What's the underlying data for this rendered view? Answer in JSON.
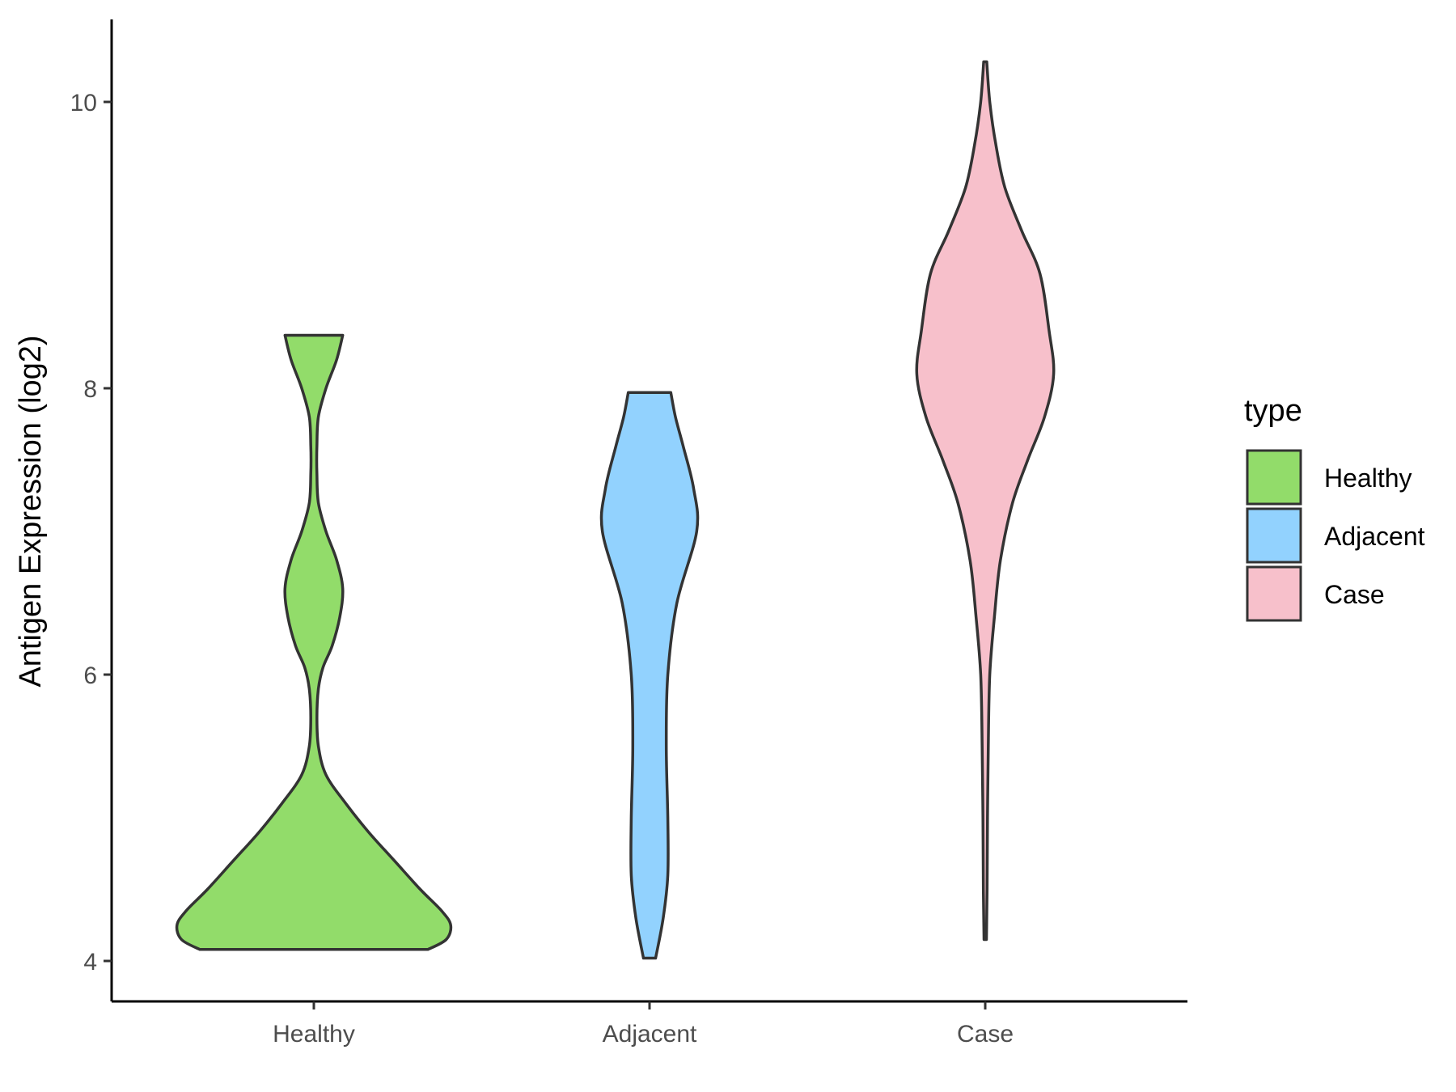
{
  "chart_data": {
    "type": "violin",
    "title": "",
    "xlabel": "",
    "ylabel": "Antigen Expression (log2)",
    "ylim": [
      3.7,
      10.6
    ],
    "yticks": [
      4,
      6,
      8,
      10
    ],
    "yticks_labels": [
      "4",
      "6",
      "8",
      "10"
    ],
    "categories": [
      "Healthy",
      "Adjacent",
      "Case"
    ],
    "grid": false,
    "legend": {
      "title": "type",
      "position": "right",
      "entries": [
        "Healthy",
        "Adjacent",
        "Case"
      ]
    },
    "series": [
      {
        "category": "Healthy",
        "color": "#92dc6a",
        "ymin": 4.08,
        "ymax": 8.37,
        "density": [
          [
            4.08,
            0.75
          ],
          [
            4.15,
            0.87
          ],
          [
            4.25,
            0.9
          ],
          [
            4.35,
            0.84
          ],
          [
            4.5,
            0.7
          ],
          [
            4.7,
            0.53
          ],
          [
            4.9,
            0.36
          ],
          [
            5.1,
            0.21
          ],
          [
            5.3,
            0.08
          ],
          [
            5.5,
            0.03
          ],
          [
            5.7,
            0.02
          ],
          [
            5.9,
            0.03
          ],
          [
            6.05,
            0.06
          ],
          [
            6.2,
            0.12
          ],
          [
            6.4,
            0.17
          ],
          [
            6.6,
            0.19
          ],
          [
            6.8,
            0.15
          ],
          [
            7.0,
            0.08
          ],
          [
            7.2,
            0.03
          ],
          [
            7.4,
            0.02
          ],
          [
            7.6,
            0.02
          ],
          [
            7.8,
            0.03
          ],
          [
            8.0,
            0.08
          ],
          [
            8.2,
            0.15
          ],
          [
            8.37,
            0.19
          ]
        ]
      },
      {
        "category": "Adjacent",
        "color": "#92d2fe",
        "ymin": 4.02,
        "ymax": 7.97,
        "density": [
          [
            4.02,
            0.04
          ],
          [
            4.3,
            0.09
          ],
          [
            4.6,
            0.12
          ],
          [
            5.0,
            0.12
          ],
          [
            5.5,
            0.11
          ],
          [
            6.0,
            0.12
          ],
          [
            6.5,
            0.18
          ],
          [
            7.0,
            0.31
          ],
          [
            7.3,
            0.29
          ],
          [
            7.6,
            0.22
          ],
          [
            7.8,
            0.17
          ],
          [
            7.97,
            0.14
          ]
        ]
      },
      {
        "category": "Case",
        "color": "#f7c0cb",
        "ymin": 4.15,
        "ymax": 10.28,
        "density": [
          [
            4.15,
            0.008
          ],
          [
            4.5,
            0.012
          ],
          [
            5.0,
            0.015
          ],
          [
            5.5,
            0.02
          ],
          [
            6.0,
            0.03
          ],
          [
            6.4,
            0.06
          ],
          [
            6.8,
            0.1
          ],
          [
            7.2,
            0.18
          ],
          [
            7.5,
            0.28
          ],
          [
            7.8,
            0.39
          ],
          [
            8.1,
            0.45
          ],
          [
            8.4,
            0.42
          ],
          [
            8.8,
            0.36
          ],
          [
            9.1,
            0.24
          ],
          [
            9.4,
            0.13
          ],
          [
            9.7,
            0.07
          ],
          [
            10.0,
            0.03
          ],
          [
            10.28,
            0.01
          ]
        ]
      }
    ]
  }
}
